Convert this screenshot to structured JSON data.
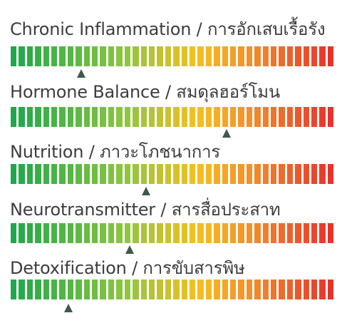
{
  "gauges": [
    {
      "label": "Chronic Inflammation / การอักเสบเรื้อรัง",
      "level": 0.22
    },
    {
      "label": "Hormone Balance / สมดุลฮอร์โมน",
      "level": 0.67
    },
    {
      "label": "Nutrition / ภาวะโภชนาการ",
      "level": 0.42
    },
    {
      "label": "Neurotransmitter / สารสื่อประสาท",
      "level": 0.37
    },
    {
      "label": "Detoxification / การขับสารพิษ",
      "level": 0.18
    }
  ],
  "colors": {
    "scale_start": "#1fa84a",
    "scale_mid_green": "#8cc63f",
    "scale_mid_yellow": "#f5c021",
    "scale_orange": "#f28e2b",
    "scale_end": "#e8332c",
    "marker": "#3e5a48",
    "text": "#3d3d3d"
  }
}
